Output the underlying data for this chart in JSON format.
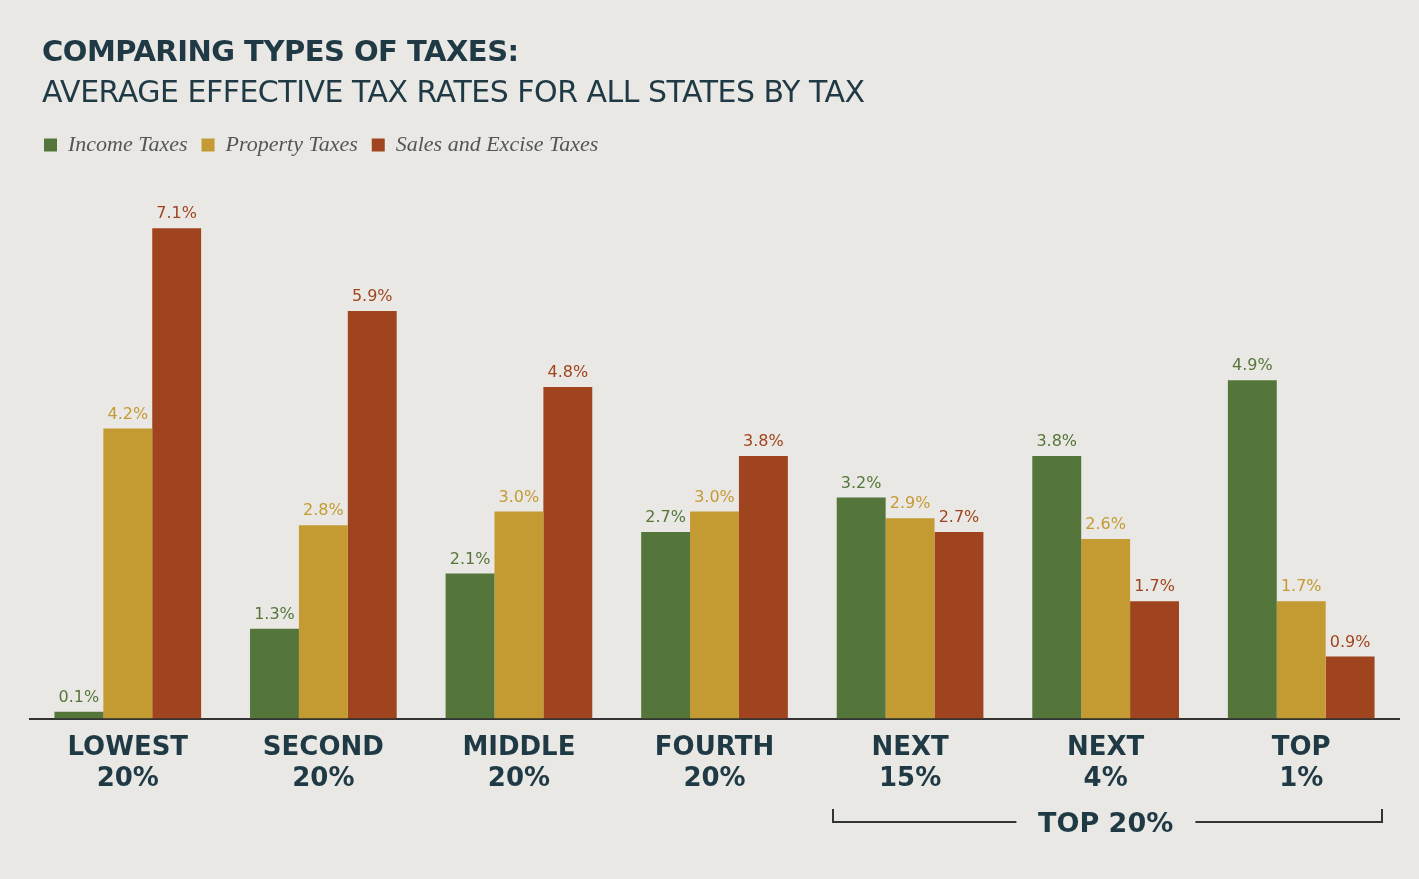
{
  "chart_data": {
    "type": "bar",
    "title": "COMPARING TYPES OF TAXES:",
    "subtitle": "AVERAGE EFFECTIVE TAX RATES FOR ALL STATES BY TAX",
    "categories": [
      "LOWEST 20%",
      "SECOND 20%",
      "MIDDLE 20%",
      "FOURTH 20%",
      "NEXT 15%",
      "NEXT 4%",
      "TOP 1%"
    ],
    "series": [
      {
        "name": "Income Taxes",
        "color": "#55763a",
        "values": [
          0.1,
          1.3,
          2.1,
          2.7,
          3.2,
          3.8,
          4.9
        ],
        "value_labels": [
          "0.1%",
          "1.3%",
          "2.1%",
          "2.7%",
          "3.2%",
          "3.8%",
          "4.9%"
        ]
      },
      {
        "name": "Property Taxes",
        "color": "#c49a33",
        "values": [
          4.2,
          2.8,
          3.0,
          3.0,
          2.9,
          2.6,
          1.7
        ],
        "value_labels": [
          "4.2%",
          "2.8%",
          "3.0%",
          "3.0%",
          "2.9%",
          "2.6%",
          "1.7%"
        ]
      },
      {
        "name": "Sales and Excise Taxes",
        "color": "#a0441f",
        "values": [
          7.1,
          5.9,
          4.8,
          3.8,
          2.7,
          1.7,
          0.9
        ],
        "value_labels": [
          "7.1%",
          "5.9%",
          "4.8%",
          "3.8%",
          "2.7%",
          "1.7%",
          "0.9%"
        ]
      }
    ],
    "legend": "top left",
    "grid": false,
    "tick_labels": "x",
    "annotations": [
      "TOP 20%"
    ]
  }
}
